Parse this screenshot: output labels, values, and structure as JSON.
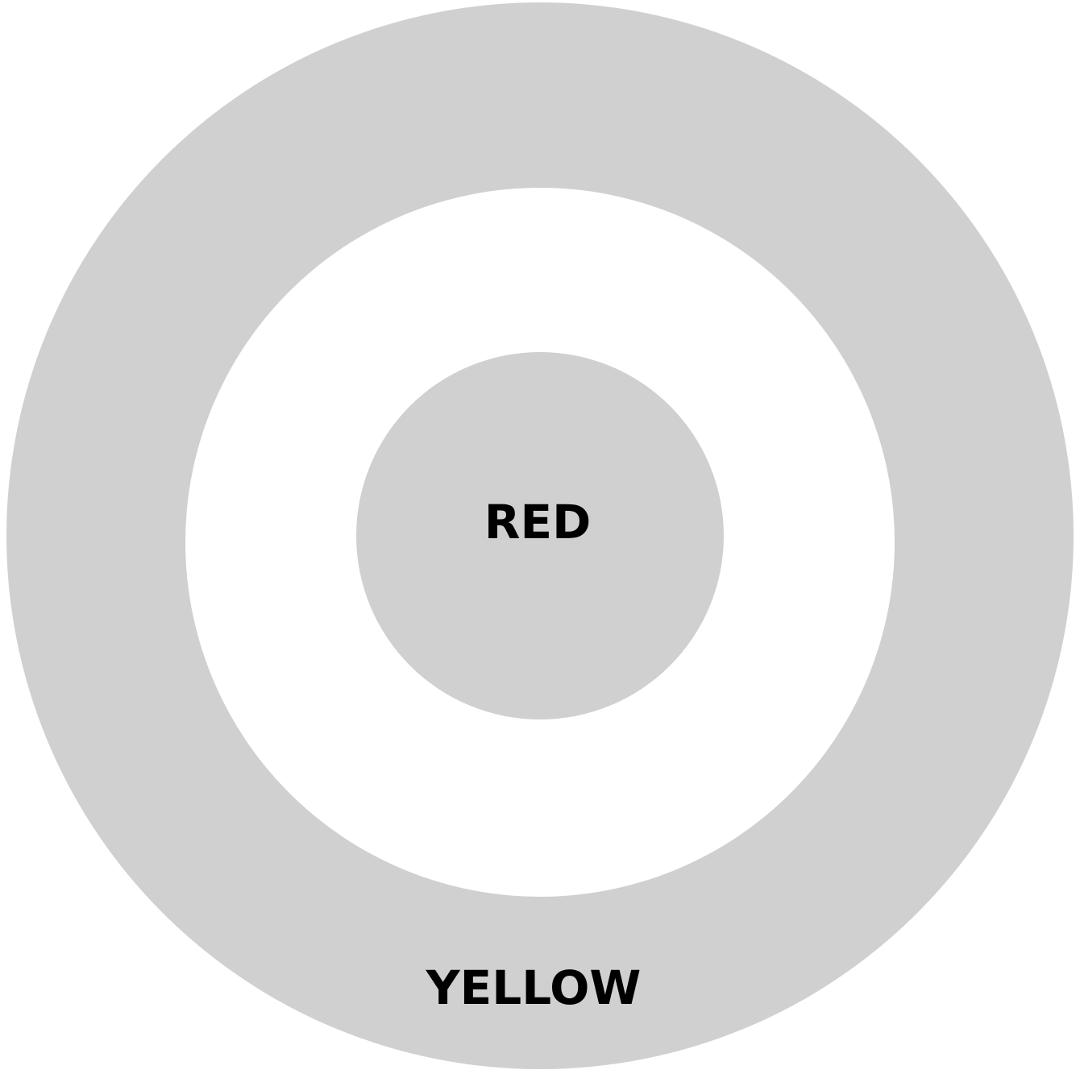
{
  "rings": [
    {
      "label": "RED"
    },
    {
      "label": "YELLOW"
    }
  ]
}
